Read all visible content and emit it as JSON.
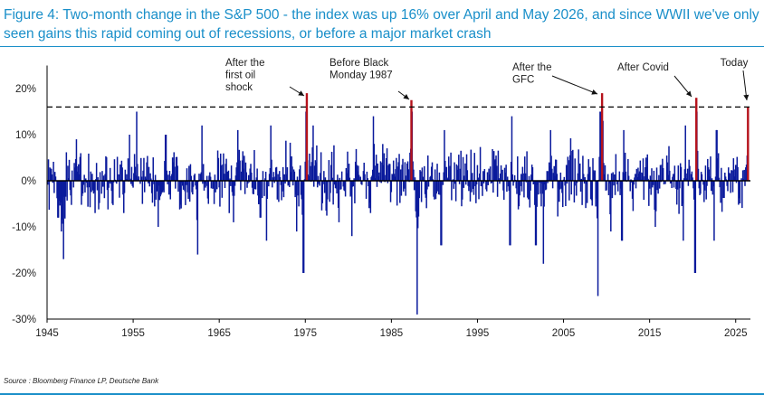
{
  "header": {
    "title": "Figure 4: Two-month change in the S&P 500 - the index was up 16% over April and May 2026, and since WWII we've only seen gains this rapid coming out of recessions, or before a major market crash"
  },
  "footer": {
    "source": "Source : Bloomberg Finance LP, Deutsche Bank"
  },
  "colors": {
    "accent": "#1a8fc9",
    "series": "#0a1a9c",
    "highlight": "#b5121b"
  },
  "chart_data": {
    "type": "bar",
    "title": "",
    "xlabel": "",
    "ylabel": "",
    "xlim": [
      1945,
      2026.5
    ],
    "ylim": [
      -30,
      25
    ],
    "yticks": [
      20,
      10,
      0,
      -10,
      -20,
      -30
    ],
    "ytick_labels": [
      "20%",
      "10%",
      "0%",
      "-10%",
      "-20%",
      "-30%"
    ],
    "xticks": [
      1945,
      1955,
      1965,
      1975,
      1985,
      1995,
      2005,
      2015,
      2025
    ],
    "xtick_labels": [
      "1945",
      "1955",
      "1965",
      "1975",
      "1985",
      "1995",
      "2005",
      "2015",
      "2025"
    ],
    "reference_line": 16,
    "series": [
      {
        "values_note": "monthly two-month % change, Jan 1945 - May 2026",
        "anchors": [
          [
            1946.2,
            -8
          ],
          [
            1946.8,
            -17
          ],
          [
            1946.6,
            -11
          ],
          [
            1948.3,
            9
          ],
          [
            1950.5,
            -7
          ],
          [
            1953.8,
            -7
          ],
          [
            1954.5,
            10
          ],
          [
            1955.3,
            15
          ],
          [
            1957.8,
            -10
          ],
          [
            1958.7,
            10
          ],
          [
            1960.5,
            -6
          ],
          [
            1962.4,
            -16
          ],
          [
            1962.9,
            12
          ],
          [
            1966.6,
            -9
          ],
          [
            1967.1,
            11
          ],
          [
            1969.7,
            -8
          ],
          [
            1970.4,
            -13
          ],
          [
            1970.9,
            12
          ],
          [
            1973.9,
            -11
          ],
          [
            1974.7,
            -20
          ],
          [
            1975.0,
            19
          ],
          [
            1975.8,
            12
          ],
          [
            1978.8,
            -9
          ],
          [
            1980.3,
            -12
          ],
          [
            1982.5,
            -7
          ],
          [
            1982.8,
            14
          ],
          [
            1987.3,
            17
          ],
          [
            1987.9,
            -29
          ],
          [
            1990.7,
            -14
          ],
          [
            1991.1,
            11
          ],
          [
            1998.7,
            -14
          ],
          [
            1998.9,
            14
          ],
          [
            2001.7,
            -14
          ],
          [
            2002.6,
            -18
          ],
          [
            2003.4,
            11
          ],
          [
            2008.9,
            -25
          ],
          [
            2009.2,
            19
          ],
          [
            2009.5,
            13
          ],
          [
            2010.4,
            -11
          ],
          [
            2011.7,
            -13
          ],
          [
            2011.9,
            11
          ],
          [
            2015.6,
            -10
          ],
          [
            2018.8,
            -13
          ],
          [
            2019.1,
            12
          ],
          [
            2020.2,
            -20
          ],
          [
            2020.4,
            18
          ],
          [
            2022.4,
            -13
          ],
          [
            2022.7,
            11
          ],
          [
            2026.3,
            16
          ]
        ]
      }
    ],
    "highlighted_bars": [
      {
        "x": 1975.05,
        "value": 19
      },
      {
        "x": 1987.2,
        "value": 17.5
      },
      {
        "x": 2009.35,
        "value": 19
      },
      {
        "x": 2020.3,
        "value": 18
      },
      {
        "x": 2026.3,
        "value": 16
      }
    ],
    "annotations": [
      {
        "lines": [
          "After the",
          "first oil",
          "shock"
        ]
      },
      {
        "lines": [
          "Before Black",
          "Monday 1987"
        ]
      },
      {
        "lines": [
          "After the",
          "GFC"
        ]
      },
      {
        "lines": [
          "After Covid"
        ]
      },
      {
        "lines": [
          "Today"
        ]
      }
    ]
  }
}
